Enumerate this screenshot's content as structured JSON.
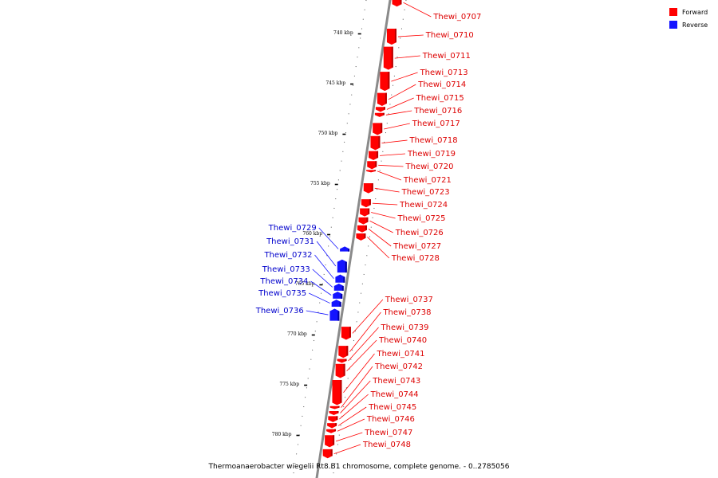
{
  "caption": "Thermoanaerobacter wiegelii Rt8.B1 chromosome, complete genome. - 0..2785056",
  "colors": {
    "forward": "#ff0000",
    "forward_dark": "#b80000",
    "reverse": "#1414ff",
    "reverse_dark": "#0000a0",
    "backbone": "#8a8a8a"
  },
  "legend": [
    {
      "label": "Forward",
      "color": "#ff0000"
    },
    {
      "label": "Reverse",
      "color": "#1414ff"
    }
  ],
  "ticks": [
    {
      "kbp": 740,
      "label": "740 kbp"
    },
    {
      "kbp": 745,
      "label": "745 kbp"
    },
    {
      "kbp": 750,
      "label": "750 kbp"
    },
    {
      "kbp": 755,
      "label": "755 kbp"
    },
    {
      "kbp": 760,
      "label": "760 kbp"
    },
    {
      "kbp": 765,
      "label": "765 kbp"
    },
    {
      "kbp": 770,
      "label": "770 kbp"
    },
    {
      "kbp": 775,
      "label": "775 kbp"
    },
    {
      "kbp": 780,
      "label": "780 kbp"
    }
  ],
  "genes": [
    {
      "name": "Thewi_0707",
      "strand": "forward",
      "start": 736.6,
      "end": 737.4
    },
    {
      "name": "Thewi_0710",
      "strand": "forward",
      "start": 739.6,
      "end": 741.2
    },
    {
      "name": "Thewi_0711",
      "strand": "forward",
      "start": 741.4,
      "end": 743.7
    },
    {
      "name": "Thewi_0713",
      "strand": "forward",
      "start": 743.9,
      "end": 745.8
    },
    {
      "name": "Thewi_0714",
      "strand": "forward",
      "start": 746.0,
      "end": 747.3
    },
    {
      "name": "Thewi_0715",
      "strand": "forward",
      "start": 747.4,
      "end": 747.9
    },
    {
      "name": "Thewi_0716",
      "strand": "forward",
      "start": 748.0,
      "end": 748.4
    },
    {
      "name": "Thewi_0717",
      "strand": "forward",
      "start": 749.0,
      "end": 750.2
    },
    {
      "name": "Thewi_0718",
      "strand": "forward",
      "start": 750.3,
      "end": 751.7
    },
    {
      "name": "Thewi_0719",
      "strand": "forward",
      "start": 751.8,
      "end": 752.7
    },
    {
      "name": "Thewi_0720",
      "strand": "forward",
      "start": 752.8,
      "end": 753.6
    },
    {
      "name": "Thewi_0721",
      "strand": "forward",
      "start": 753.7,
      "end": 753.9
    },
    {
      "name": "Thewi_0723",
      "strand": "forward",
      "start": 755.0,
      "end": 756.0
    },
    {
      "name": "Thewi_0724",
      "strand": "forward",
      "start": 756.6,
      "end": 757.4
    },
    {
      "name": "Thewi_0725",
      "strand": "forward",
      "start": 757.5,
      "end": 758.3
    },
    {
      "name": "Thewi_0726",
      "strand": "forward",
      "start": 758.4,
      "end": 759.1
    },
    {
      "name": "Thewi_0727",
      "strand": "forward",
      "start": 759.2,
      "end": 759.9
    },
    {
      "name": "Thewi_0728",
      "strand": "forward",
      "start": 760.0,
      "end": 760.7
    },
    {
      "name": "Thewi_0729",
      "strand": "reverse",
      "start": 761.3,
      "end": 761.8
    },
    {
      "name": "Thewi_0731",
      "strand": "reverse",
      "start": 762.6,
      "end": 763.9
    },
    {
      "name": "Thewi_0732",
      "strand": "reverse",
      "start": 764.1,
      "end": 764.9
    },
    {
      "name": "Thewi_0733",
      "strand": "reverse",
      "start": 765.0,
      "end": 765.7
    },
    {
      "name": "Thewi_0734",
      "strand": "reverse",
      "start": 765.8,
      "end": 766.5
    },
    {
      "name": "Thewi_0735",
      "strand": "reverse",
      "start": 766.6,
      "end": 767.3
    },
    {
      "name": "Thewi_0736",
      "strand": "reverse",
      "start": 767.5,
      "end": 768.7
    },
    {
      "name": "Thewi_0737",
      "strand": "forward",
      "start": 769.3,
      "end": 770.6
    },
    {
      "name": "Thewi_0738",
      "strand": "forward",
      "start": 771.2,
      "end": 772.4
    },
    {
      "name": "Thewi_0739",
      "strand": "forward",
      "start": 772.5,
      "end": 772.9
    },
    {
      "name": "Thewi_0740",
      "strand": "forward",
      "start": 773.0,
      "end": 774.4
    },
    {
      "name": "Thewi_0741",
      "strand": "forward",
      "start": 774.6,
      "end": 777.1
    },
    {
      "name": "Thewi_0742",
      "strand": "forward",
      "start": 777.2,
      "end": 777.5
    },
    {
      "name": "Thewi_0743",
      "strand": "forward",
      "start": 777.7,
      "end": 778.1
    },
    {
      "name": "Thewi_0744",
      "strand": "forward",
      "start": 778.2,
      "end": 778.8
    },
    {
      "name": "Thewi_0745",
      "strand": "forward",
      "start": 778.9,
      "end": 779.4
    },
    {
      "name": "Thewi_0746",
      "strand": "forward",
      "start": 779.5,
      "end": 779.9
    },
    {
      "name": "Thewi_0747",
      "strand": "forward",
      "start": 780.1,
      "end": 781.3
    },
    {
      "name": "Thewi_0748",
      "strand": "forward",
      "start": 781.5,
      "end": 782.4
    }
  ],
  "labels": [
    {
      "gene": "Thewi_0707"
    },
    {
      "gene": "Thewi_0710"
    },
    {
      "gene": "Thewi_0711"
    },
    {
      "gene": "Thewi_0713"
    },
    {
      "gene": "Thewi_0714"
    },
    {
      "gene": "Thewi_0715"
    },
    {
      "gene": "Thewi_0716"
    },
    {
      "gene": "Thewi_0717"
    },
    {
      "gene": "Thewi_0718"
    },
    {
      "gene": "Thewi_0719"
    },
    {
      "gene": "Thewi_0720"
    },
    {
      "gene": "Thewi_0721"
    },
    {
      "gene": "Thewi_0723"
    },
    {
      "gene": "Thewi_0724"
    },
    {
      "gene": "Thewi_0725"
    },
    {
      "gene": "Thewi_0726"
    },
    {
      "gene": "Thewi_0727"
    },
    {
      "gene": "Thewi_0728"
    },
    {
      "gene": "Thewi_0729"
    },
    {
      "gene": "Thewi_0731"
    },
    {
      "gene": "Thewi_0732"
    },
    {
      "gene": "Thewi_0733"
    },
    {
      "gene": "Thewi_0734"
    },
    {
      "gene": "Thewi_0735"
    },
    {
      "gene": "Thewi_0736"
    },
    {
      "gene": "Thewi_0737"
    },
    {
      "gene": "Thewi_0738"
    },
    {
      "gene": "Thewi_0739"
    },
    {
      "gene": "Thewi_0740"
    },
    {
      "gene": "Thewi_0741"
    },
    {
      "gene": "Thewi_0742"
    },
    {
      "gene": "Thewi_0743"
    },
    {
      "gene": "Thewi_0744"
    },
    {
      "gene": "Thewi_0745"
    },
    {
      "gene": "Thewi_0746"
    },
    {
      "gene": "Thewi_0747"
    },
    {
      "gene": "Thewi_0748"
    }
  ]
}
